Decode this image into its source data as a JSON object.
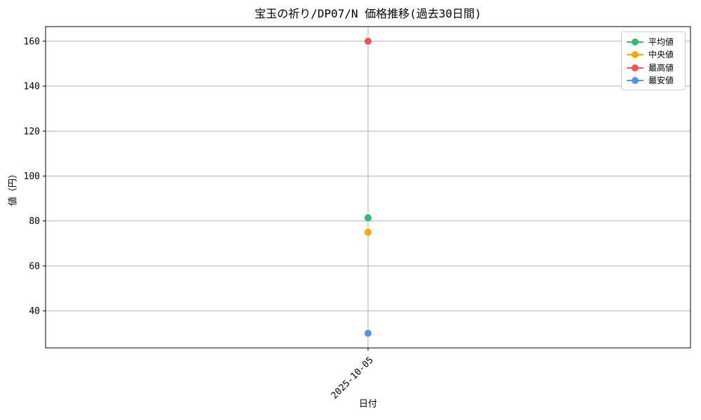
{
  "page": {
    "background": "#ffffff"
  },
  "chart_data": {
    "type": "scatter",
    "title": "宝玉の祈り/DP07/N 価格推移(過去30日間)",
    "xlabel": "日付",
    "ylabel": "値（円）",
    "x": [
      "2025-10-05"
    ],
    "series": [
      {
        "name": "平均値",
        "color": "#2dbd6c",
        "values": [
          81.4
        ]
      },
      {
        "name": "中央値",
        "color": "#ffa502",
        "values": [
          75
        ]
      },
      {
        "name": "最高値",
        "color": "#f25252",
        "values": [
          160
        ]
      },
      {
        "name": "最安値",
        "color": "#4d96f0",
        "values": [
          30
        ]
      }
    ],
    "ylim": [
      23.5,
      166.5
    ],
    "yticks": [
      40,
      60,
      80,
      100,
      120,
      140,
      160
    ],
    "grid": true,
    "grid_color": "#b0b0b0",
    "spine_color": "#000000",
    "legend_position": "upper right"
  }
}
